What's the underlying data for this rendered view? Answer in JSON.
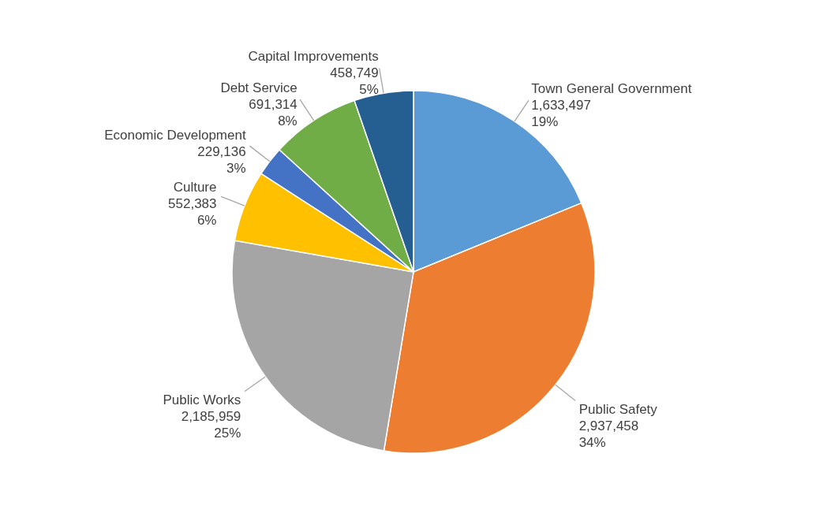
{
  "chart_data": {
    "type": "pie",
    "categories": [
      "Town General Government",
      "Public Safety",
      "Public Works",
      "Culture",
      "Economic Development",
      "Debt Service",
      "Capital Improvements"
    ],
    "values": [
      1633497,
      2937458,
      2185959,
      552383,
      229136,
      691314,
      458749
    ],
    "value_labels": [
      "1,633,497\n19%",
      "2,937,458\n34%",
      "2,185,959\n25%",
      "552,383\n6%",
      "229,136\n3%",
      "691,314\n8%",
      "458,749\n5%"
    ],
    "colors": [
      "#5b9bd5",
      "#ed7d31",
      "#a5a5a5",
      "#ffc000",
      "#4472c4",
      "#70ad47",
      "#255e91"
    ]
  }
}
